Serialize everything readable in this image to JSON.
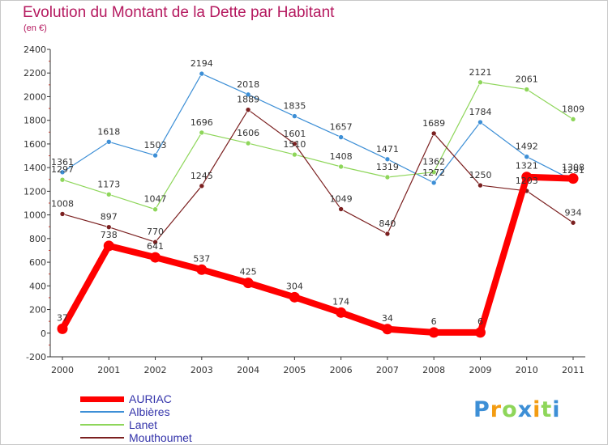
{
  "chart_data": {
    "type": "line",
    "title": "Evolution du Montant de la Dette par Habitant",
    "subtitle": "(en €)",
    "x": [
      "2000",
      "2001",
      "2002",
      "2003",
      "2004",
      "2005",
      "2006",
      "2007",
      "2008",
      "2009",
      "2010",
      "2011"
    ],
    "ylim": [
      -200,
      2400
    ],
    "yticks": [
      -200,
      0,
      200,
      400,
      600,
      800,
      1000,
      1200,
      1400,
      1600,
      1800,
      2000,
      2200,
      2400
    ],
    "grid": false,
    "legend_position": "bottom-left",
    "series": [
      {
        "name": "AURIAC",
        "color": "#ff0000",
        "values": [
          37,
          738,
          641,
          537,
          425,
          304,
          174,
          34,
          6,
          6,
          1321,
          1308
        ]
      },
      {
        "name": "Albières",
        "color": "#3d8fd6",
        "values": [
          1361,
          1618,
          1503,
          2194,
          2018,
          1835,
          1657,
          1471,
          1272,
          1784,
          1492,
          1291
        ]
      },
      {
        "name": "Lanet",
        "color": "#8ed65a",
        "values": [
          1297,
          1173,
          1047,
          1696,
          1606,
          1510,
          1408,
          1319,
          1362,
          2121,
          2061,
          1809
        ]
      },
      {
        "name": "Mouthoumet",
        "color": "#7b2020",
        "values": [
          1008,
          897,
          770,
          1245,
          1889,
          1601,
          1049,
          840,
          1689,
          1250,
          1203,
          934
        ]
      }
    ]
  },
  "logo": {
    "letters": [
      "P",
      "r",
      "o",
      "x",
      "i",
      "t",
      "i"
    ],
    "colors": [
      "#3d8fd6",
      "#f39c12",
      "#8ed65a",
      "#3d8fd6",
      "#f39c12",
      "#8ed65a",
      "#3d8fd6"
    ]
  }
}
